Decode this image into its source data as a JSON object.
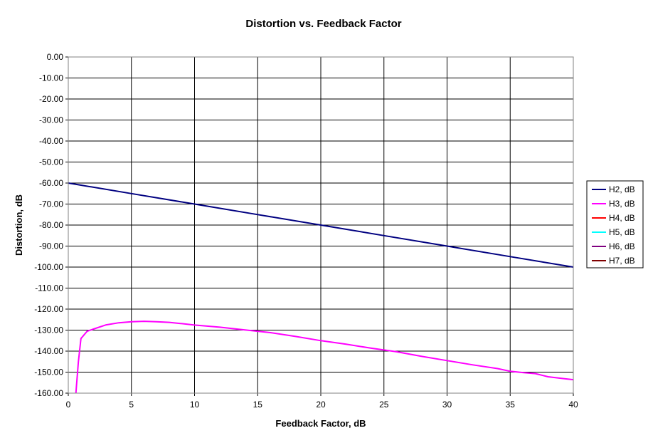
{
  "chart_data": {
    "type": "line",
    "title": "Distortion vs. Feedback Factor",
    "xlabel": "Feedback Factor, dB",
    "ylabel": "Distortion, dB",
    "xlim": [
      0,
      40
    ],
    "ylim": [
      -160,
      0
    ],
    "x_ticks": [
      0,
      5,
      10,
      15,
      20,
      25,
      30,
      35,
      40
    ],
    "y_ticks": [
      0,
      -10,
      -20,
      -30,
      -40,
      -50,
      -60,
      -70,
      -80,
      -90,
      -100,
      -110,
      -120,
      -130,
      -140,
      -150,
      -160
    ],
    "x_tick_labels": [
      "0",
      "5",
      "10",
      "15",
      "20",
      "25",
      "30",
      "35",
      "40"
    ],
    "y_tick_labels": [
      "0.00",
      "-10.00",
      "-20.00",
      "-30.00",
      "-40.00",
      "-50.00",
      "-60.00",
      "-70.00",
      "-80.00",
      "-90.00",
      "-100.00",
      "-110.00",
      "-120.00",
      "-130.00",
      "-140.00",
      "-150.00",
      "-160.00"
    ],
    "grid": true,
    "legend_position": "right",
    "series": [
      {
        "name": "H2, dB",
        "color": "#000080",
        "points": [
          [
            0,
            -60
          ],
          [
            5,
            -65
          ],
          [
            10,
            -70
          ],
          [
            15,
            -75
          ],
          [
            20,
            -80
          ],
          [
            25,
            -85
          ],
          [
            30,
            -90
          ],
          [
            35,
            -95
          ],
          [
            40,
            -100
          ]
        ]
      },
      {
        "name": "H3, dB",
        "color": "#ff00ff",
        "points": [
          [
            0.6,
            -160
          ],
          [
            0.8,
            -145
          ],
          [
            1.0,
            -134
          ],
          [
            1.5,
            -130.5
          ],
          [
            2,
            -129.5
          ],
          [
            3,
            -127.5
          ],
          [
            4,
            -126.5
          ],
          [
            5,
            -126
          ],
          [
            6,
            -125.8
          ],
          [
            7,
            -126
          ],
          [
            8,
            -126.3
          ],
          [
            9,
            -126.9
          ],
          [
            10,
            -127.6
          ],
          [
            12,
            -128.6
          ],
          [
            14,
            -129.9
          ],
          [
            16,
            -131.2
          ],
          [
            18,
            -133
          ],
          [
            20,
            -135
          ],
          [
            22,
            -136.7
          ],
          [
            24,
            -138.6
          ],
          [
            26,
            -140.3
          ],
          [
            28,
            -142.5
          ],
          [
            30,
            -144.5
          ],
          [
            32,
            -146.5
          ],
          [
            34,
            -148.3
          ],
          [
            35,
            -149.6
          ],
          [
            36,
            -150.2
          ],
          [
            37,
            -150.7
          ],
          [
            38,
            -152.2
          ],
          [
            39,
            -152.9
          ],
          [
            40,
            -153.6
          ]
        ]
      },
      {
        "name": "H4, dB",
        "color": "#ff0000",
        "points": []
      },
      {
        "name": "H5, dB",
        "color": "#00ffff",
        "points": []
      },
      {
        "name": "H6, dB",
        "color": "#800080",
        "points": []
      },
      {
        "name": "H7, dB",
        "color": "#800000",
        "points": []
      }
    ]
  }
}
